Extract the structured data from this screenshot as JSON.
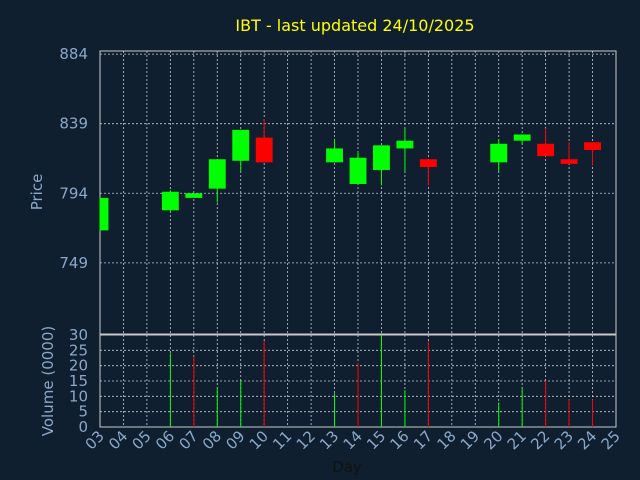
{
  "chart_data": [
    {
      "type": "candlestick",
      "title": "IBT - last updated 24/10/2025",
      "ylabel": "Price",
      "ylim": [
        703,
        886
      ],
      "yticks": [
        "749",
        "794",
        "839",
        "884"
      ],
      "grid": true,
      "x": [
        "03",
        "06",
        "07",
        "08",
        "09",
        "10",
        "13",
        "14",
        "15",
        "16",
        "17",
        "20",
        "21",
        "22",
        "23",
        "24"
      ],
      "open": [
        770,
        783,
        791,
        797,
        815,
        830,
        814,
        800,
        809,
        823,
        816,
        814,
        828,
        826,
        816,
        827
      ],
      "close": [
        791,
        795,
        794,
        816,
        835,
        814,
        823,
        817,
        825,
        828,
        811,
        826,
        832,
        818,
        813,
        822
      ],
      "high": [
        791,
        796,
        794,
        816,
        835,
        842,
        829,
        821,
        825,
        836,
        816,
        829,
        832,
        836,
        827,
        827
      ],
      "low": [
        770,
        782,
        791,
        788,
        808,
        814,
        814,
        800,
        799,
        808,
        799,
        808,
        826,
        818,
        813,
        812
      ]
    },
    {
      "type": "bar",
      "ylabel": "Volume (0000)",
      "xlabel": "Day",
      "ylim": [
        0,
        30
      ],
      "yticks": [
        "0",
        "5",
        "10",
        "15",
        "20",
        "25",
        "30"
      ],
      "grid": true,
      "categories": [
        "03",
        "04",
        "05",
        "06",
        "07",
        "08",
        "09",
        "10",
        "11",
        "12",
        "13",
        "14",
        "15",
        "16",
        "17",
        "18",
        "19",
        "20",
        "21",
        "22",
        "23",
        "24",
        "25"
      ],
      "values": [
        0,
        0,
        0,
        24,
        23,
        13,
        15,
        28,
        0,
        0,
        11,
        21,
        30,
        12,
        28,
        0,
        0,
        8,
        13,
        15,
        9,
        9,
        0
      ],
      "direction": [
        "",
        "",
        "",
        "up",
        "down",
        "up",
        "up",
        "down",
        "",
        "",
        "up",
        "down",
        "up",
        "up",
        "down",
        "",
        "",
        "up",
        "up",
        "down",
        "down",
        "down",
        ""
      ]
    }
  ],
  "colors": {
    "background": "#0f1f30",
    "title": "#ffff00",
    "axis_text": "#8aa8c8",
    "up": "#00ff00",
    "down": "#ff0000",
    "grid": "#c8c8c8"
  }
}
